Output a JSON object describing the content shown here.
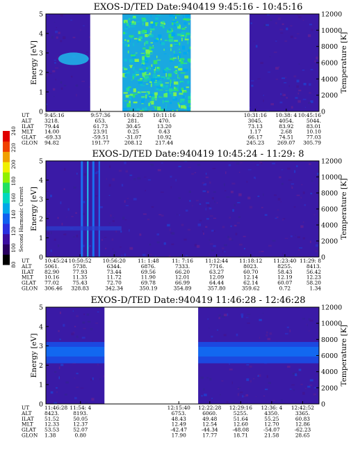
{
  "chart_data": [
    {
      "type": "heatmap",
      "title": "EXOS-D/TED   Date:940419  9:45:16 - 10:45:16",
      "ylabel": "Energy [eV]",
      "y2label": "Temperature [K]",
      "ylim": [
        0,
        5
      ],
      "y2lim": [
        0,
        12000
      ],
      "yticks": [
        "0",
        "1",
        "2",
        "3",
        "4",
        "5"
      ],
      "y2ticks": [
        "0",
        "2000",
        "4000",
        "6000",
        "8000",
        "10000",
        "12000"
      ],
      "time_range_s": [
        35116,
        38716
      ],
      "data_gaps_s": [
        [
          35700,
          36125
        ],
        [
          37025,
          37800
        ]
      ],
      "ephemeris": {
        "row_labels": [
          "UT",
          "ALT",
          "ILAT",
          "MLT",
          "GLAT",
          "GLON"
        ],
        "columns": [
          {
            "t": 35116,
            "values": [
              "9:45:16",
              "3218.",
              "79.44",
              "14.00",
              "-69.33",
              "94.82"
            ]
          },
          {
            "t": 35836,
            "values": [
              "9:57:36",
              "653.",
              "61.73",
              "23.91",
              "-59.51",
              "191.77"
            ]
          },
          {
            "t": 36268,
            "values": [
              "10:4:28",
              "281.",
              "30.45",
              "0.25",
              "-31.07",
              "208.12"
            ]
          },
          {
            "t": 36676,
            "values": [
              "10:11:16",
              "470.",
              "13.20",
              "0.43",
              "10.92",
              "217.44"
            ]
          },
          {
            "t": 37876,
            "values": [
              "10:31:16",
              "3045.",
              "73.13",
              "1.17",
              "66.17",
              "245.23"
            ]
          },
          {
            "t": 38284,
            "values": [
              "10:38: 4",
              "4054.",
              "83.92",
              "2.68",
              "74.51",
              "269.07"
            ]
          },
          {
            "t": 38716,
            "values": [
              "10:45:16",
              "5044.",
              "83.01",
              "10.10",
              "77.03",
              "305.79"
            ]
          }
        ]
      }
    },
    {
      "type": "heatmap",
      "title": "EXOS-D/TED   Date:940419  10:45:24 - 11:29: 8",
      "ylabel": "Energy [eV]",
      "y2label": "Temperature [K]",
      "ylim": [
        0,
        5
      ],
      "y2lim": [
        0,
        12000
      ],
      "yticks": [
        "0",
        "1",
        "2",
        "3",
        "4",
        "5"
      ],
      "y2ticks": [
        "0",
        "2000",
        "4000",
        "6000",
        "8000",
        "10000",
        "12000"
      ],
      "time_range_s": [
        38724,
        41348
      ],
      "data_gaps_s": [],
      "ephemeris": {
        "row_labels": [
          "UT",
          "ALT",
          "ILAT",
          "MLT",
          "GLAT",
          "GLON"
        ],
        "columns": [
          {
            "t": 38724,
            "values": [
              "10:45:24",
              "5061.",
              "82.90",
              "10.16",
              "77.02",
              "306.46"
            ]
          },
          {
            "t": 39052,
            "values": [
              "10:50:52",
              "5738.",
              "77.93",
              "11.35",
              "75.43",
              "328.83"
            ]
          },
          {
            "t": 39380,
            "values": [
              "10:56:20",
              "6344.",
              "73.44",
              "11.72",
              "72.70",
              "342.34"
            ]
          },
          {
            "t": 39708,
            "values": [
              "11: 1:48",
              "6876.",
              "69.56",
              "11.90",
              "69.78",
              "350.19"
            ]
          },
          {
            "t": 40036,
            "values": [
              "11: 7:16",
              "7333.",
              "66.20",
              "12.01",
              "66.99",
              "354.89"
            ]
          },
          {
            "t": 40364,
            "values": [
              "11:12:44",
              "7716.",
              "63.27",
              "12.09",
              "64.44",
              "357.80"
            ]
          },
          {
            "t": 40692,
            "values": [
              "11:18:12",
              "8023.",
              "60.70",
              "12.14",
              "62.14",
              "359.62"
            ]
          },
          {
            "t": 41020,
            "values": [
              "11:23:40",
              "8255.",
              "58.43",
              "12.19",
              "60.07",
              "0.72"
            ]
          },
          {
            "t": 41348,
            "values": [
              "11:29: 8",
              "8413.",
              "56.42",
              "12.23",
              "58.20",
              "1.34"
            ]
          }
        ]
      }
    },
    {
      "type": "heatmap",
      "title": "EXOS-D/TED   Date:940419  11:46:28 - 12:46:28",
      "ylabel": "Energy [eV]",
      "y2label": "Temperature [K]",
      "ylim": [
        0,
        5
      ],
      "y2lim": [
        0,
        12000
      ],
      "yticks": [
        "0",
        "1",
        "2",
        "3",
        "4",
        "5"
      ],
      "y2ticks": [
        "0",
        "2000",
        "4000",
        "6000",
        "8000",
        "10000",
        "12000"
      ],
      "time_range_s": [
        42388,
        45988
      ],
      "data_gaps_s": [
        [
          43160,
          44395
        ]
      ],
      "ephemeris": {
        "row_labels": [
          "UT",
          "ALT",
          "ILAT",
          "MLT",
          "GLAT",
          "GLON"
        ],
        "columns": [
          {
            "t": 42388,
            "values": [
              "11:46:28",
              "8423.",
              "51.52",
              "12.33",
              "53.53",
              "1.38"
            ]
          },
          {
            "t": 42844,
            "values": [
              "11:54: 4",
              "8193.",
              "50.05",
              "12.37",
              "52.07",
              "0.80"
            ]
          },
          {
            "t": 44140,
            "values": [
              "12:15:40",
              "6753.",
              "48.43",
              "12.49",
              "-42.47",
              "17.90"
            ]
          },
          {
            "t": 44548,
            "values": [
              "12:22:28",
              "6060.",
              "49.48",
              "12.54",
              "-44.34",
              "17.77"
            ]
          },
          {
            "t": 44956,
            "values": [
              "12:29:16",
              "5255.",
              "51.64",
              "12.60",
              "-48.08",
              "18.71"
            ]
          },
          {
            "t": 45364,
            "values": [
              "12:36: 4",
              "4350.",
              "55.25",
              "12.70",
              "-54.07",
              "21.58"
            ]
          },
          {
            "t": 45772,
            "values": [
              "12:42:52",
              "3365.",
              "60.83",
              "12.86",
              "-62.23",
              "28.65"
            ]
          }
        ]
      }
    }
  ],
  "colorbar": {
    "label": "Second Harmonic Current",
    "ticks": [
      "80",
      "100",
      "120",
      "140",
      "160",
      "180",
      "200",
      "220",
      "240"
    ],
    "range": [
      80,
      240
    ],
    "colors": [
      "#000000",
      "#2a0060",
      "#3c0ea0",
      "#2a30e0",
      "#1060f0",
      "#00a8e8",
      "#00d8c0",
      "#20e060",
      "#90f000",
      "#f0f000",
      "#f0a000",
      "#f04000",
      "#e00000"
    ]
  }
}
